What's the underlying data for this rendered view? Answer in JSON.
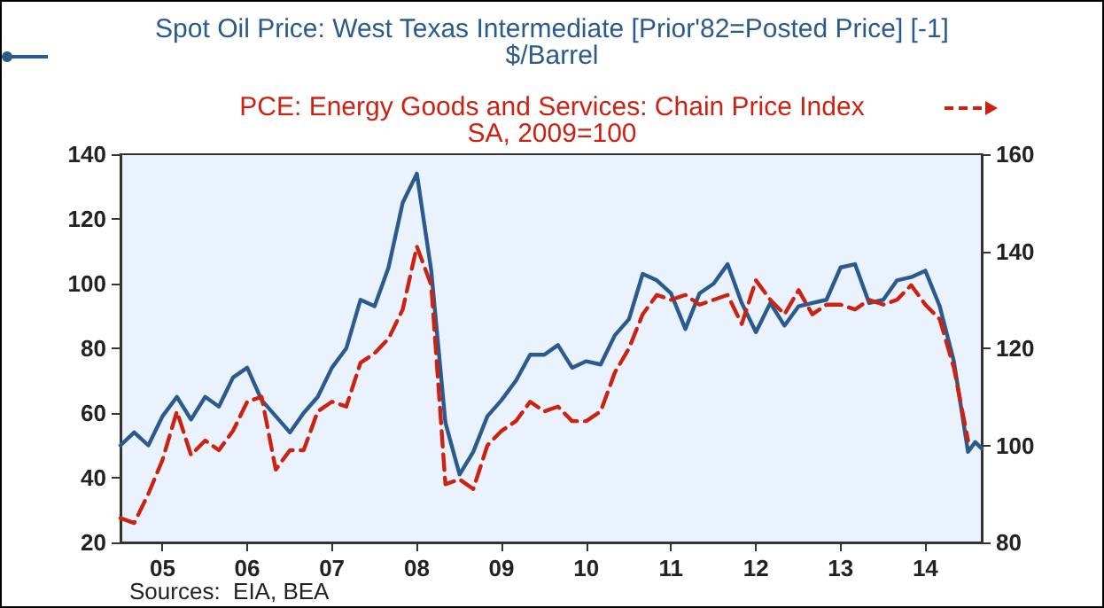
{
  "chart_data": {
    "type": "line",
    "legend": "top",
    "marker": "none",
    "grid": false,
    "annotations": [
      "Sources:  EIA, BEA"
    ],
    "xlim": [
      "2005-01",
      "2015-03"
    ],
    "xticks": [
      {
        "value": "2005-07",
        "label": "05"
      },
      {
        "value": "2006-07",
        "label": "06"
      },
      {
        "value": "2007-07",
        "label": "07"
      },
      {
        "value": "2008-07",
        "label": "08"
      },
      {
        "value": "2009-07",
        "label": "09"
      },
      {
        "value": "2010-07",
        "label": "10"
      },
      {
        "value": "2011-07",
        "label": "11"
      },
      {
        "value": "2012-07",
        "label": "12"
      },
      {
        "value": "2013-07",
        "label": "13"
      },
      {
        "value": "2014-07",
        "label": "14"
      }
    ],
    "ylim": [
      20,
      140
    ],
    "yticks": [
      20,
      40,
      60,
      80,
      100,
      120,
      140
    ],
    "y2lim": [
      80,
      160
    ],
    "y2ticks": [
      80,
      100,
      120,
      140,
      160
    ],
    "series": [
      {
        "name": "Spot Oil Price: West Texas Intermediate [Prior'82=Posted Price] [-1]\n$/Barrel",
        "color": "#2b5a8f",
        "line_style": "solid",
        "x": [
          "2005-01",
          "2005-03",
          "2005-05",
          "2005-07",
          "2005-09",
          "2005-11",
          "2006-01",
          "2006-03",
          "2006-05",
          "2006-07",
          "2006-09",
          "2006-11",
          "2007-01",
          "2007-03",
          "2007-05",
          "2007-07",
          "2007-09",
          "2007-11",
          "2008-01",
          "2008-03",
          "2008-05",
          "2008-07",
          "2008-09",
          "2008-11",
          "2009-01",
          "2009-03",
          "2009-05",
          "2009-07",
          "2009-09",
          "2009-11",
          "2010-01",
          "2010-03",
          "2010-05",
          "2010-07",
          "2010-09",
          "2010-11",
          "2011-01",
          "2011-03",
          "2011-05",
          "2011-07",
          "2011-09",
          "2011-11",
          "2012-01",
          "2012-03",
          "2012-05",
          "2012-07",
          "2012-09",
          "2012-11",
          "2013-01",
          "2013-03",
          "2013-05",
          "2013-07",
          "2013-09",
          "2013-11",
          "2014-01",
          "2014-03",
          "2014-05",
          "2014-07",
          "2014-09",
          "2014-11",
          "2015-01",
          "2015-02",
          "2015-03"
        ],
        "values": [
          50,
          54,
          50,
          59,
          65,
          58,
          65,
          62,
          71,
          74,
          64,
          59,
          54,
          60,
          65,
          74,
          80,
          95,
          93,
          105,
          125,
          134,
          104,
          57,
          41,
          48,
          59,
          64,
          70,
          78,
          78,
          81,
          74,
          76,
          75,
          84,
          89,
          103,
          101,
          97,
          86,
          97,
          100,
          106,
          94,
          85,
          94,
          87,
          93,
          94,
          95,
          105,
          106,
          94,
          95,
          101,
          102,
          104,
          93,
          76,
          48,
          51,
          49
        ]
      },
      {
        "name": "PCE: Energy Goods and Services: Chain Price Index\nSA, 2009=100",
        "color": "#cc2211",
        "line_style": "dashed",
        "axis": "y2",
        "x": [
          "2005-01",
          "2005-03",
          "2005-05",
          "2005-07",
          "2005-09",
          "2005-11",
          "2006-01",
          "2006-03",
          "2006-05",
          "2006-07",
          "2006-09",
          "2006-11",
          "2007-01",
          "2007-03",
          "2007-05",
          "2007-07",
          "2007-09",
          "2007-11",
          "2008-01",
          "2008-03",
          "2008-05",
          "2008-07",
          "2008-09",
          "2008-11",
          "2009-01",
          "2009-03",
          "2009-05",
          "2009-07",
          "2009-09",
          "2009-11",
          "2010-01",
          "2010-03",
          "2010-05",
          "2010-07",
          "2010-09",
          "2010-11",
          "2011-01",
          "2011-03",
          "2011-05",
          "2011-07",
          "2011-09",
          "2011-11",
          "2012-01",
          "2012-03",
          "2012-05",
          "2012-07",
          "2012-09",
          "2012-11",
          "2013-01",
          "2013-03",
          "2013-05",
          "2013-07",
          "2013-09",
          "2013-11",
          "2014-01",
          "2014-03",
          "2014-05",
          "2014-07",
          "2014-09",
          "2014-11",
          "2015-01"
        ],
        "values": [
          85,
          84,
          90,
          97,
          107,
          98,
          101,
          99,
          103,
          109,
          110,
          95,
          99,
          99,
          107,
          109,
          108,
          117,
          119,
          122,
          128,
          141,
          133,
          92,
          93,
          91,
          100,
          103,
          105,
          109,
          107,
          108,
          105,
          105,
          107,
          115,
          120,
          127,
          131,
          130,
          131,
          129,
          130,
          131,
          125,
          134,
          130,
          127,
          132,
          127,
          129,
          129,
          128,
          130,
          129,
          130,
          133,
          129,
          126,
          116,
          101
        ]
      }
    ]
  }
}
